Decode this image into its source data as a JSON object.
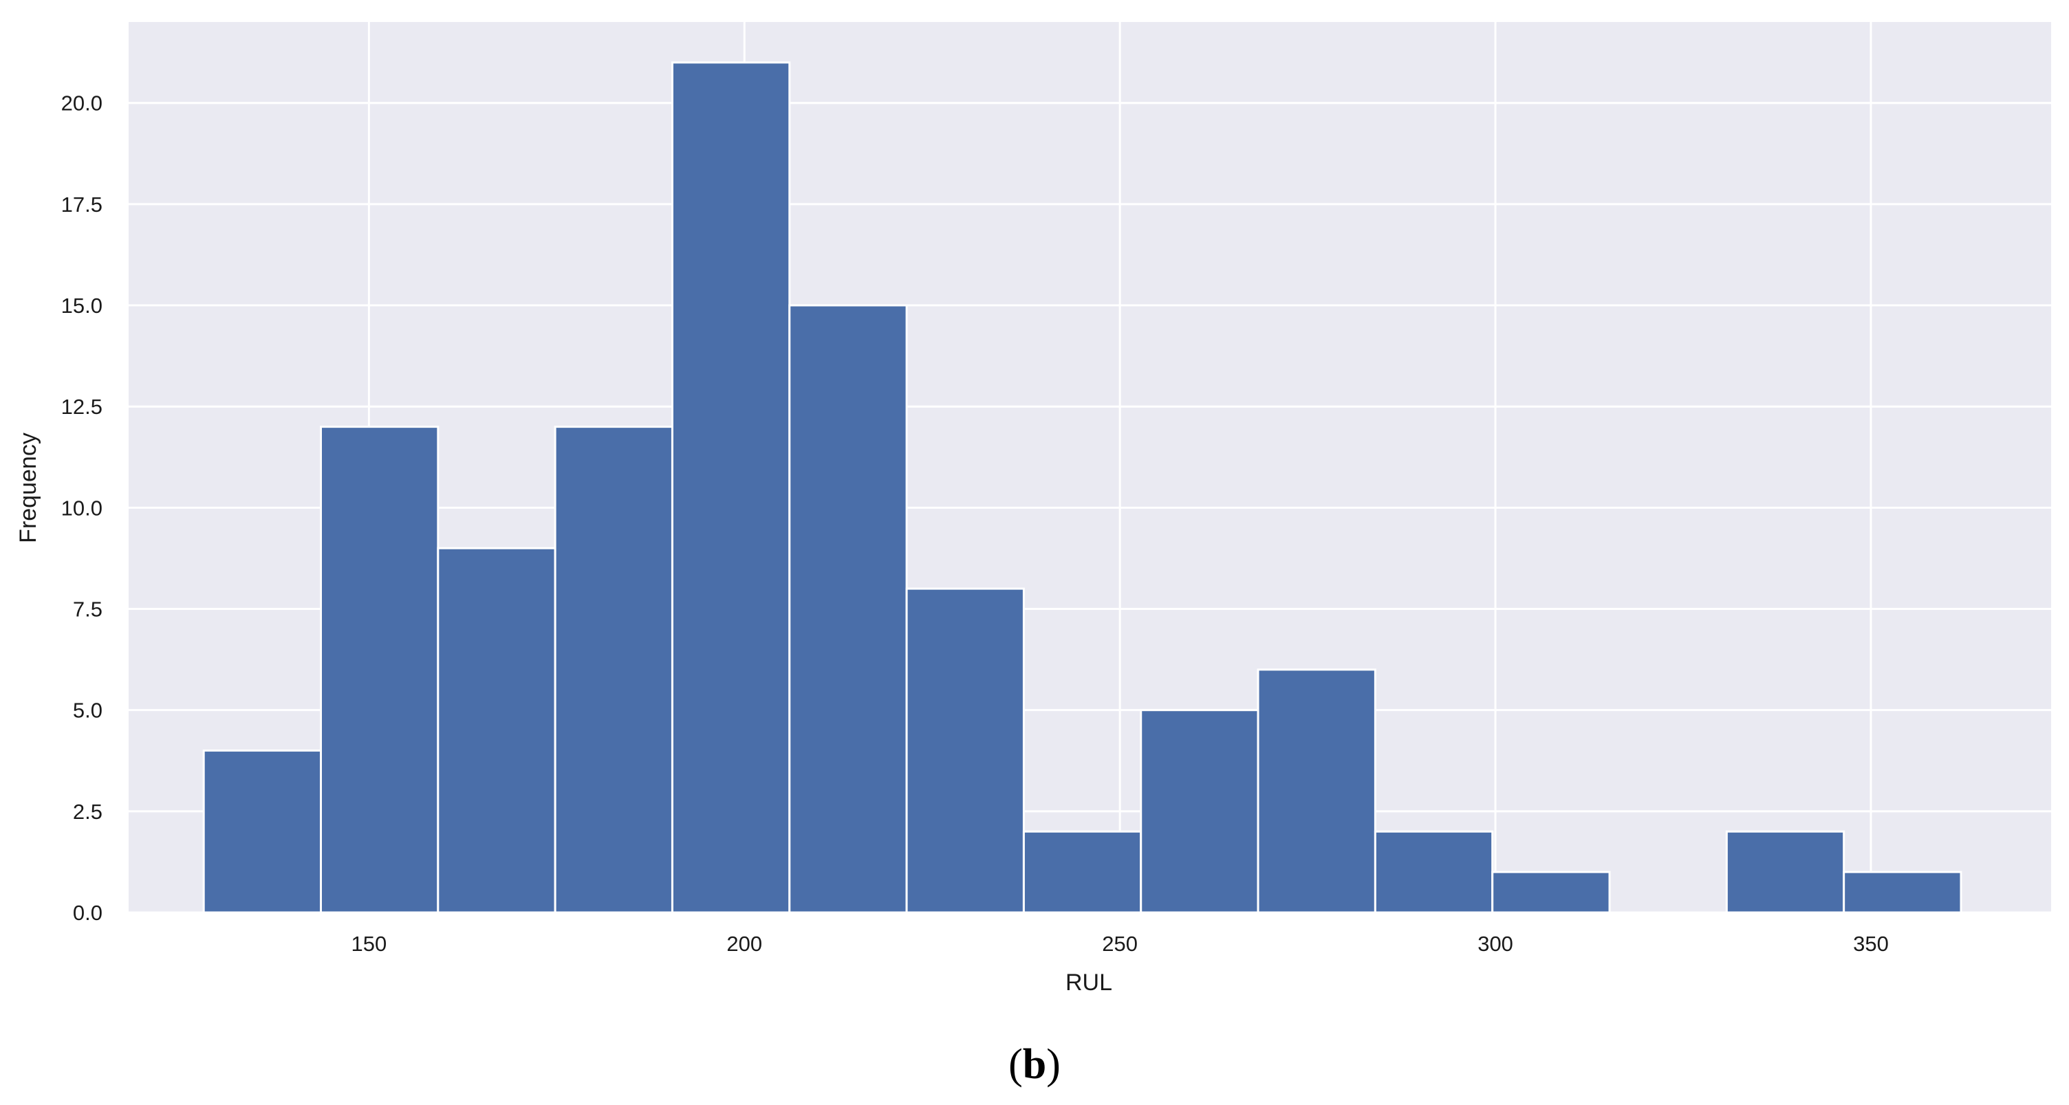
{
  "chart_data": {
    "type": "bar",
    "subtype": "histogram",
    "xlabel": "RUL",
    "ylabel": "Frequency",
    "caption": "(b)",
    "caption_parts": {
      "open": "(",
      "letter": "b",
      "close": ")"
    },
    "xlim": [
      118,
      374
    ],
    "ylim": [
      0,
      22
    ],
    "xticks": [
      150,
      200,
      250,
      300,
      350
    ],
    "xtick_labels": [
      "150",
      "200",
      "250",
      "300",
      "350"
    ],
    "yticks": [
      0,
      2.5,
      5,
      7.5,
      10,
      12.5,
      15,
      17.5,
      20
    ],
    "ytick_labels": [
      "0.0",
      "2.5",
      "5.0",
      "7.5",
      "10.0",
      "12.5",
      "15.0",
      "17.5",
      "20.0"
    ],
    "bin_edges": [
      128,
      143.6,
      159.2,
      174.8,
      190.4,
      206,
      221.6,
      237.2,
      252.8,
      268.4,
      284,
      299.6,
      315.2,
      330.8,
      346.4,
      362
    ],
    "values": [
      4,
      12,
      9,
      12,
      21,
      15,
      8,
      2,
      5,
      6,
      2,
      1,
      0,
      2,
      1
    ],
    "grid": true,
    "legend": "none",
    "colors": {
      "bar": "#4a6ea9",
      "bar_edge": "#ffffff",
      "plot_background": "#eaeaf2",
      "grid": "#ffffff"
    }
  }
}
